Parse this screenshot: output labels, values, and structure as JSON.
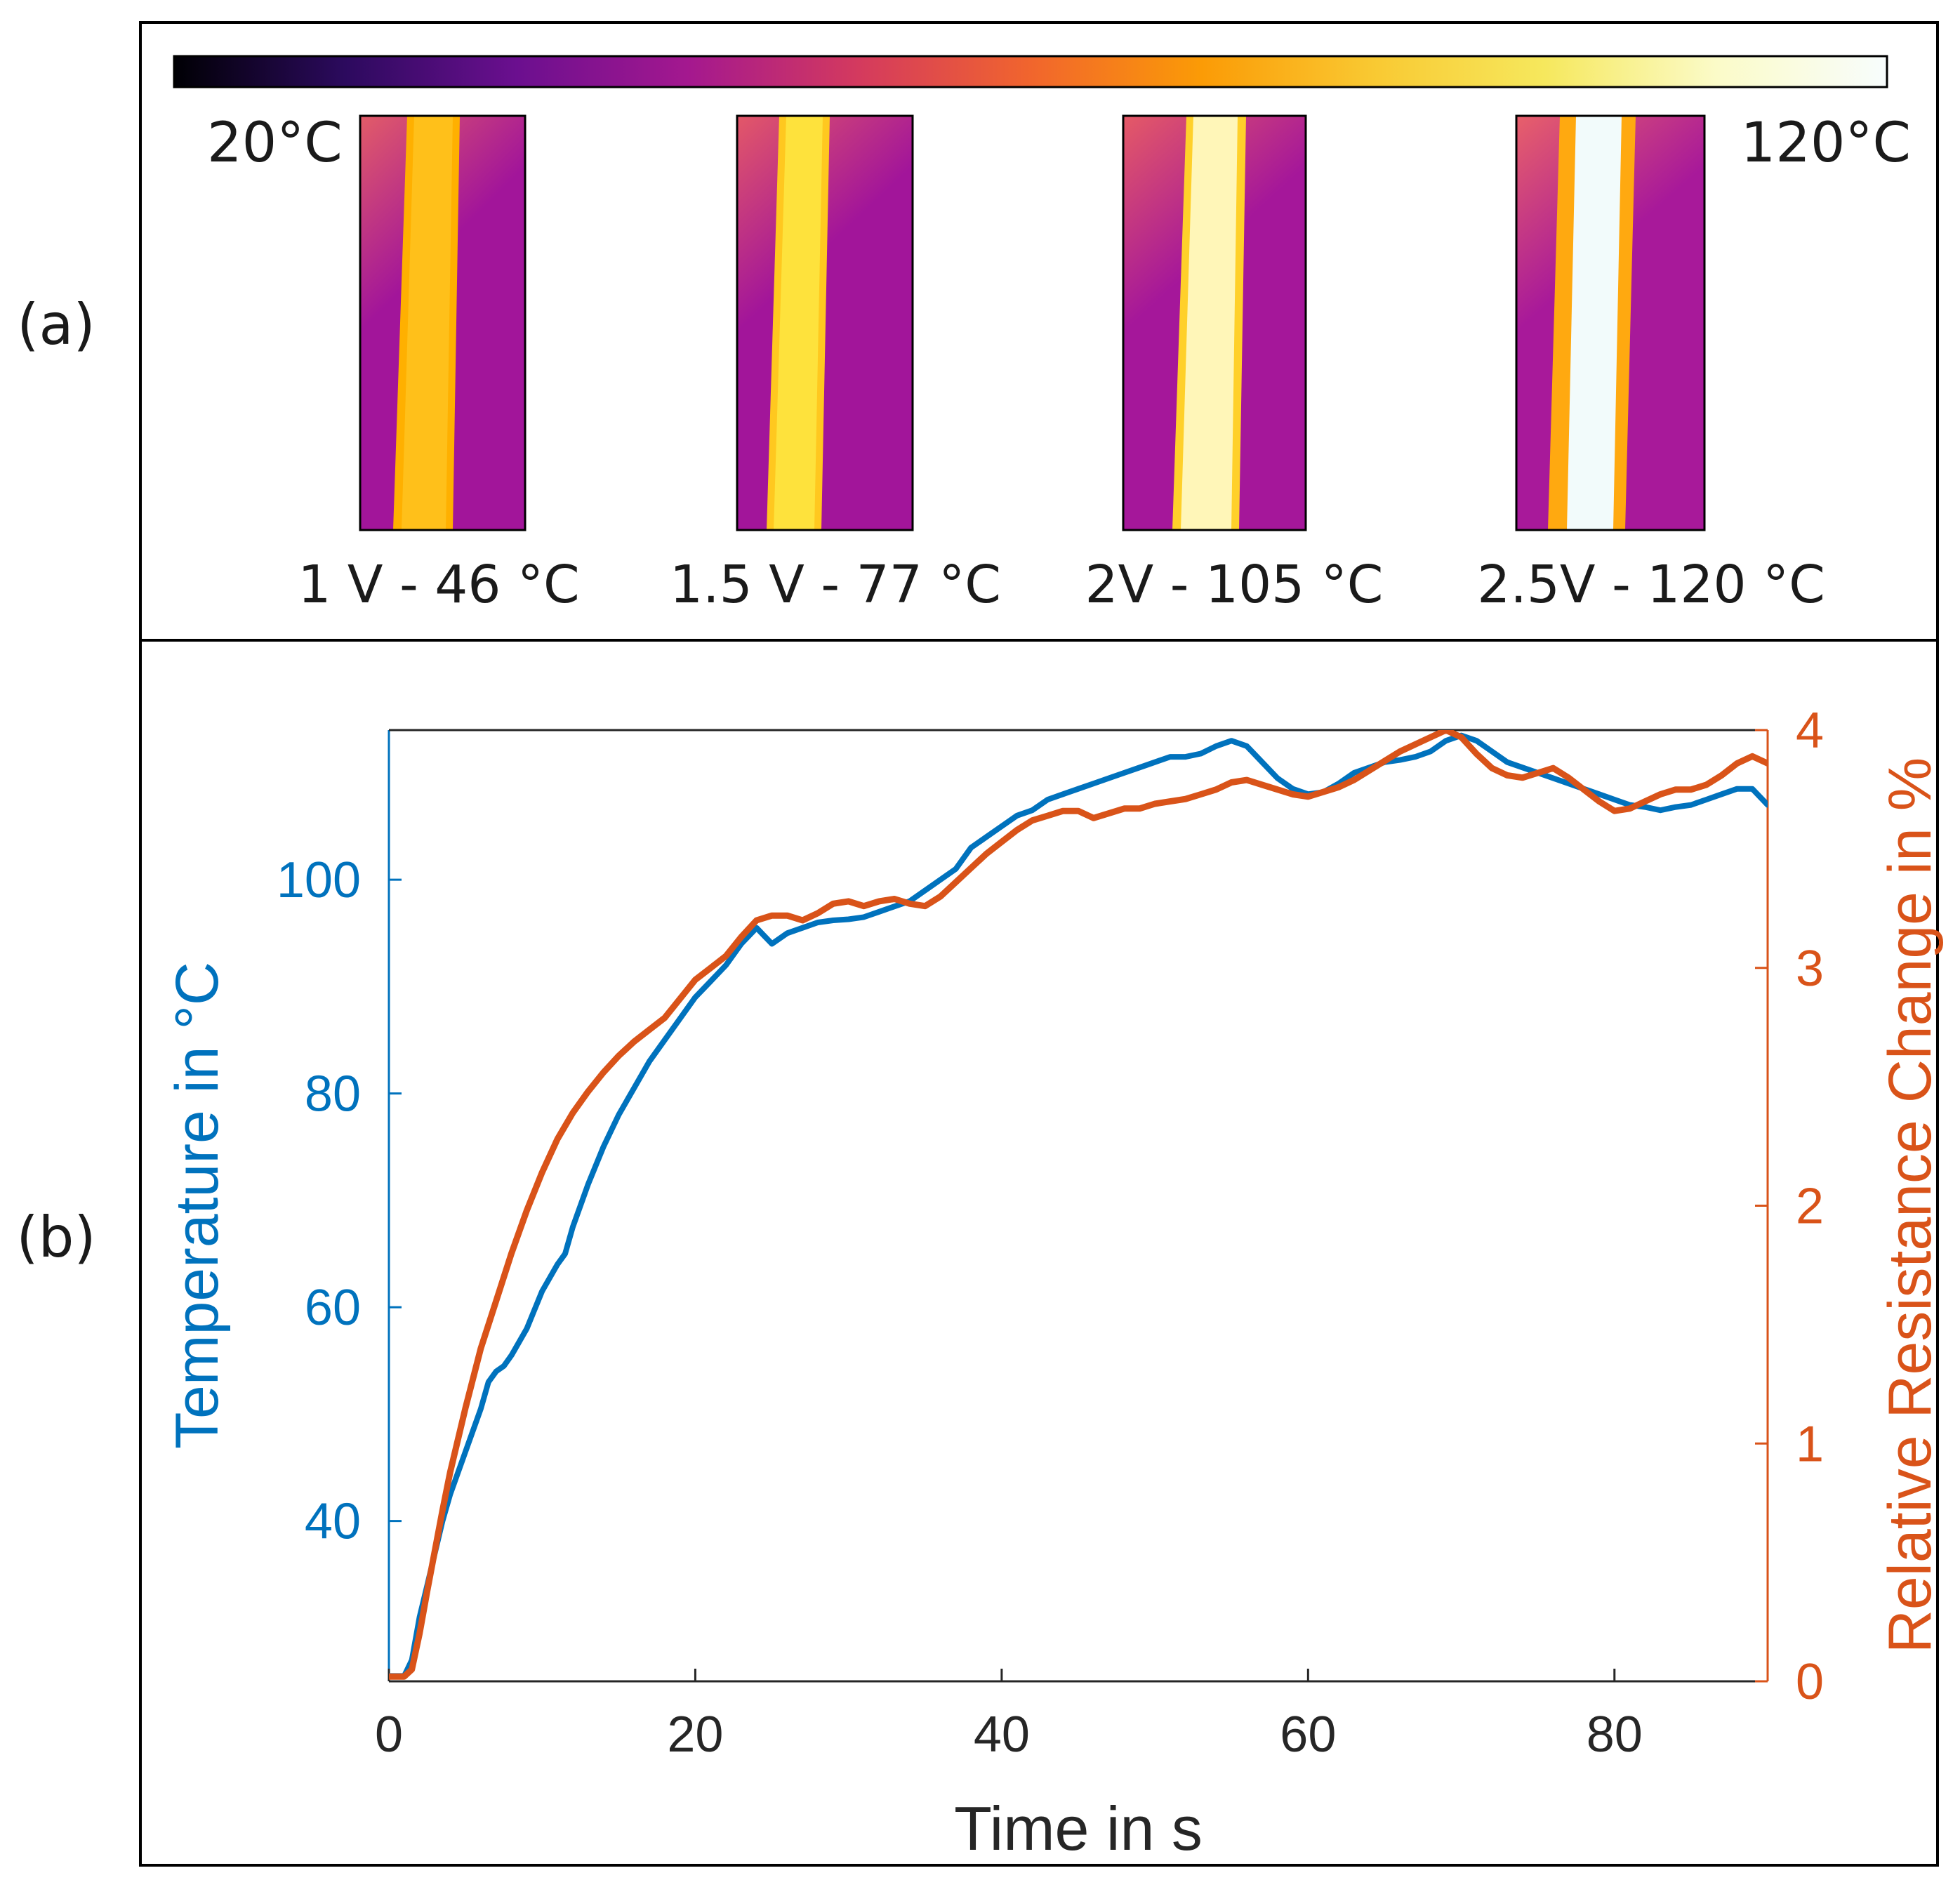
{
  "panel_labels": {
    "a": "(a)",
    "b": "(b)"
  },
  "colorbar": {
    "min_label": "20°C",
    "max_label": "120°C",
    "stops": [
      "#000004",
      "#2c0a5e",
      "#6b0f8f",
      "#a4188f",
      "#d43a5e",
      "#f1652d",
      "#fb9b06",
      "#f9c932",
      "#f6e85d",
      "#fbfbc8",
      "#f8fdfd"
    ]
  },
  "thermal_images": [
    {
      "caption": "1 V - 46 °C",
      "wire_color": "#ffc01a",
      "edge_color": "#ffb000",
      "bg_top": "#e25c68",
      "bg_bottom": "#a2159a"
    },
    {
      "caption": "1.5 V - 77 °C",
      "wire_color": "#fee23c",
      "edge_color": "#ffc81f",
      "bg_top": "#e35868",
      "bg_bottom": "#a2159a"
    },
    {
      "caption": "2V - 105 °C",
      "wire_color": "#fff6b8",
      "edge_color": "#ffd02a",
      "bg_top": "#e55a66",
      "bg_bottom": "#a5179a"
    },
    {
      "caption": "2.5V - 120 °C",
      "wire_color": "#f2fbfb",
      "edge_color": "#ffa910",
      "bg_top": "#e8606a",
      "bg_bottom": "#a8199a"
    }
  ],
  "chart_data": {
    "type": "line",
    "title": "",
    "xlabel": "Time in s",
    "ylabel_left": "Temperature in °C",
    "ylabel_right": "Relative Resistance Change in %",
    "xlim": [
      0,
      90
    ],
    "ylim_left": [
      25,
      114
    ],
    "ylim_right": [
      0,
      4
    ],
    "xticks": [
      0,
      20,
      40,
      60,
      80
    ],
    "yticks_left": [
      40,
      60,
      80,
      100
    ],
    "yticks_right": [
      0,
      1,
      2,
      3,
      4
    ],
    "grid": false,
    "colors": {
      "left": "#0072bd",
      "right": "#d95319"
    },
    "series": [
      {
        "name": "Temperature",
        "axis": "left",
        "color": "#0072bd",
        "x": [
          0,
          1,
          1.5,
          2,
          2.5,
          3,
          3.5,
          4,
          5,
          6,
          6.5,
          7,
          7.5,
          8,
          9,
          10,
          11,
          11.5,
          12,
          13,
          14,
          15,
          16,
          17,
          18,
          19,
          20,
          21,
          22,
          23,
          24,
          25,
          26,
          27,
          28,
          29,
          30,
          31,
          32,
          33,
          34,
          35,
          36,
          37,
          38,
          39,
          40,
          41,
          42,
          43,
          44,
          45,
          46,
          47,
          48,
          49,
          50,
          51,
          52,
          53,
          54,
          55,
          56,
          57,
          58,
          59,
          60,
          61,
          62,
          63,
          64,
          65,
          66,
          67,
          68,
          69,
          70,
          71,
          72,
          73,
          74,
          75,
          76,
          77,
          78,
          79,
          80,
          81,
          82,
          83,
          84,
          85,
          86,
          87,
          88,
          89,
          90
        ],
        "values": [
          25.5,
          25.5,
          27,
          31,
          34,
          37,
          40,
          42.5,
          46.5,
          50.5,
          53,
          54,
          54.5,
          55.5,
          58,
          61.5,
          64,
          65,
          67.5,
          71.5,
          75,
          78,
          80.5,
          83,
          85,
          87,
          89,
          90.5,
          92,
          94,
          95.5,
          94,
          95,
          95.5,
          96,
          96.2,
          96.3,
          96.5,
          97,
          97.5,
          98,
          99,
          100,
          101,
          103,
          104,
          105,
          106,
          106.5,
          107.5,
          108,
          108.5,
          109,
          109.5,
          110,
          110.5,
          111,
          111.5,
          111.5,
          111.8,
          112.5,
          113,
          112.5,
          111,
          109.5,
          108.5,
          108,
          108.2,
          109,
          110,
          110.5,
          111,
          111.2,
          111.5,
          112,
          113,
          113.5,
          113,
          112,
          111,
          110.5,
          110,
          109.5,
          109,
          108.5,
          108,
          107.5,
          107,
          106.8,
          106.5,
          106.8,
          107,
          107.5,
          108,
          108.5,
          108.5,
          107
        ]
      },
      {
        "name": "Relative Resistance Change",
        "axis": "right",
        "color": "#d95319",
        "x": [
          0,
          1,
          1.5,
          2,
          2.5,
          3,
          3.5,
          4,
          5,
          6,
          7,
          8,
          9,
          10,
          11,
          12,
          13,
          14,
          15,
          16,
          17,
          18,
          19,
          20,
          21,
          22,
          23,
          24,
          25,
          26,
          27,
          28,
          29,
          30,
          31,
          32,
          33,
          34,
          35,
          36,
          37,
          38,
          39,
          40,
          41,
          42,
          43,
          44,
          45,
          46,
          47,
          48,
          49,
          50,
          51,
          52,
          53,
          54,
          55,
          56,
          57,
          58,
          59,
          60,
          61,
          62,
          63,
          64,
          65,
          66,
          67,
          68,
          69,
          70,
          71,
          72,
          73,
          74,
          75,
          76,
          77,
          78,
          79,
          80,
          81,
          82,
          83,
          84,
          85,
          86,
          87,
          88,
          89,
          90
        ],
        "values": [
          0.02,
          0.02,
          0.05,
          0.2,
          0.38,
          0.55,
          0.72,
          0.88,
          1.15,
          1.4,
          1.6,
          1.8,
          1.98,
          2.14,
          2.28,
          2.39,
          2.48,
          2.56,
          2.63,
          2.69,
          2.74,
          2.79,
          2.87,
          2.95,
          3.0,
          3.05,
          3.13,
          3.2,
          3.22,
          3.22,
          3.2,
          3.23,
          3.27,
          3.28,
          3.26,
          3.28,
          3.29,
          3.27,
          3.26,
          3.3,
          3.36,
          3.42,
          3.48,
          3.53,
          3.58,
          3.62,
          3.64,
          3.66,
          3.66,
          3.63,
          3.65,
          3.67,
          3.67,
          3.69,
          3.7,
          3.71,
          3.73,
          3.75,
          3.78,
          3.79,
          3.77,
          3.75,
          3.73,
          3.72,
          3.74,
          3.76,
          3.79,
          3.83,
          3.87,
          3.91,
          3.94,
          3.97,
          4.0,
          3.97,
          3.9,
          3.84,
          3.81,
          3.8,
          3.82,
          3.84,
          3.8,
          3.75,
          3.7,
          3.66,
          3.67,
          3.7,
          3.73,
          3.75,
          3.75,
          3.77,
          3.81,
          3.86,
          3.89,
          3.86
        ]
      }
    ]
  }
}
